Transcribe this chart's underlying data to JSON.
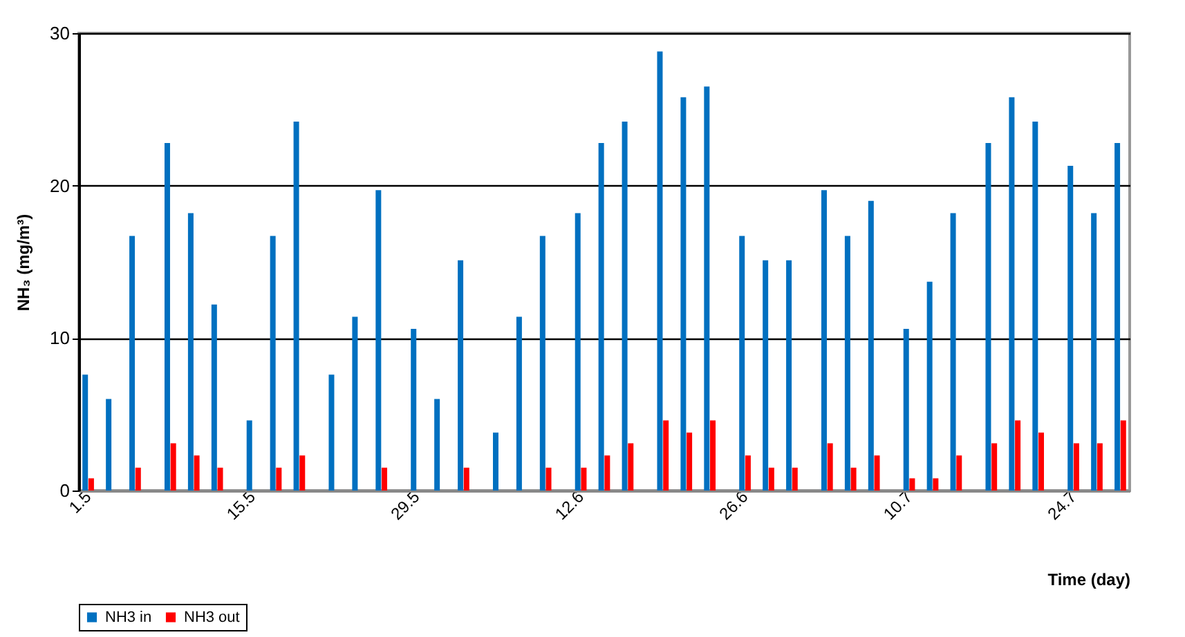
{
  "chart_data": {
    "type": "bar",
    "xlabel": "Time (day)",
    "ylabel": "NH₃ (mg/m³)",
    "categories": [
      "1.5",
      null,
      null,
      null,
      null,
      null,
      null,
      null,
      null,
      null,
      null,
      null,
      null,
      null,
      "15.5",
      null,
      null,
      null,
      null,
      null,
      null,
      null,
      null,
      null,
      null,
      null,
      null,
      null,
      "29.5",
      null,
      null,
      null,
      null,
      null,
      null,
      null,
      null,
      null,
      null,
      null,
      null,
      null,
      "12.6",
      null,
      null,
      null,
      null,
      null,
      null,
      null,
      null,
      null,
      null,
      null,
      null,
      null,
      "26.6",
      null,
      null,
      null,
      null,
      null,
      null,
      null,
      null,
      null,
      null,
      null,
      null,
      null,
      "10.7",
      null,
      null,
      null,
      null,
      null,
      null,
      null,
      null,
      null,
      null,
      null,
      null,
      null,
      "24.7",
      null,
      null,
      null,
      null
    ],
    "series": [
      {
        "name": "NH3 in",
        "color": "#0070c0",
        "values": [
          7.6,
          null,
          6.0,
          null,
          16.7,
          null,
          null,
          22.8,
          null,
          18.2,
          null,
          12.2,
          null,
          null,
          4.6,
          null,
          16.7,
          null,
          24.2,
          null,
          null,
          7.6,
          null,
          11.4,
          null,
          19.7,
          null,
          null,
          10.6,
          null,
          6.0,
          null,
          15.1,
          null,
          null,
          3.8,
          null,
          11.4,
          null,
          16.7,
          null,
          null,
          18.2,
          null,
          22.8,
          null,
          24.2,
          null,
          null,
          28.8,
          null,
          25.8,
          null,
          26.5,
          null,
          null,
          16.7,
          null,
          15.1,
          null,
          15.1,
          null,
          null,
          19.7,
          null,
          16.7,
          null,
          19.0,
          null,
          null,
          10.6,
          null,
          13.7,
          null,
          18.2,
          null,
          null,
          22.8,
          null,
          25.8,
          null,
          24.2,
          null,
          null,
          21.3,
          null,
          18.2,
          null,
          22.8
        ]
      },
      {
        "name": "NH3 out",
        "color": "#ff0000",
        "values": [
          0.8,
          null,
          0,
          null,
          1.5,
          null,
          null,
          3.1,
          null,
          2.3,
          null,
          1.5,
          null,
          null,
          0,
          null,
          1.5,
          null,
          2.3,
          null,
          null,
          0,
          null,
          0,
          null,
          1.5,
          null,
          null,
          0,
          null,
          0,
          null,
          1.5,
          null,
          null,
          0,
          null,
          0,
          null,
          1.5,
          null,
          null,
          1.5,
          null,
          2.3,
          null,
          3.1,
          null,
          null,
          4.6,
          null,
          3.8,
          null,
          4.6,
          null,
          null,
          2.3,
          null,
          1.5,
          null,
          1.5,
          null,
          null,
          3.1,
          null,
          1.5,
          null,
          2.3,
          null,
          null,
          0.8,
          null,
          0.8,
          null,
          2.3,
          null,
          null,
          3.1,
          null,
          4.6,
          null,
          3.8,
          null,
          null,
          3.1,
          null,
          3.1,
          null,
          4.6
        ]
      }
    ],
    "ylim": [
      0,
      30
    ],
    "yticks": [
      0,
      10,
      20,
      30
    ],
    "grid": "y",
    "legend": "bottom"
  }
}
